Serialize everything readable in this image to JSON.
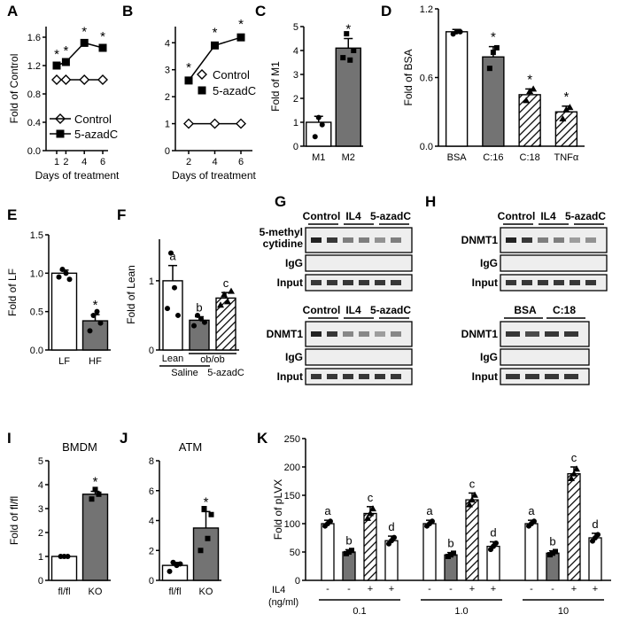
{
  "panel_labels": [
    "A",
    "B",
    "C",
    "D",
    "E",
    "F",
    "G",
    "H",
    "I",
    "J",
    "K"
  ],
  "colors": {
    "gray": "#737373",
    "dark": "#555555",
    "black": "#000000",
    "white": "#ffffff"
  },
  "chart_data": [
    {
      "panel": "A",
      "type": "line",
      "xlabel": "Days of treatment",
      "ylabel": "Fold of Control",
      "xticks": [
        "1",
        "2",
        "4",
        "6"
      ],
      "yticks": [
        "0.0",
        "0.4",
        "0.8",
        "1.2",
        "1.6"
      ],
      "ylim": [
        0,
        1.75
      ],
      "series": [
        {
          "name": "Control",
          "marker": "open-diamond",
          "x": [
            1,
            2,
            4,
            6
          ],
          "y": [
            1.0,
            1.0,
            1.0,
            1.0
          ]
        },
        {
          "name": "5-azadC",
          "marker": "filled-square",
          "x": [
            1,
            2,
            4,
            6
          ],
          "y": [
            1.2,
            1.25,
            1.52,
            1.45
          ]
        }
      ],
      "annotations": [
        "*",
        "*",
        "*",
        "*"
      ]
    },
    {
      "panel": "B",
      "type": "line",
      "xlabel": "Days of treatment",
      "ylabel": "",
      "xticks": [
        "2",
        "4",
        "6"
      ],
      "yticks": [
        "0",
        "1",
        "2",
        "3",
        "4"
      ],
      "ylim": [
        0,
        4.6
      ],
      "series": [
        {
          "name": "Control",
          "marker": "open-diamond",
          "x": [
            2,
            4,
            6
          ],
          "y": [
            1.0,
            1.0,
            1.0
          ]
        },
        {
          "name": "5-azadC",
          "marker": "filled-square",
          "x": [
            2,
            4,
            6
          ],
          "y": [
            2.6,
            3.9,
            4.2
          ]
        }
      ],
      "annotations": [
        "*",
        "*",
        "*"
      ]
    },
    {
      "panel": "C",
      "type": "bar",
      "ylabel": "Fold of M1",
      "categories": [
        "M1",
        "M2"
      ],
      "values": [
        1.0,
        4.1
      ],
      "yticks": [
        "0",
        "1",
        "2",
        "3",
        "4",
        "5"
      ],
      "ylim": [
        0,
        5
      ],
      "annotations": [
        "",
        "*"
      ]
    },
    {
      "panel": "D",
      "type": "bar",
      "ylabel": "Fold of BSA",
      "categories": [
        "BSA",
        "C:16",
        "C:18",
        "TNFα"
      ],
      "values": [
        1.0,
        0.78,
        0.45,
        0.3
      ],
      "yticks": [
        "0.0",
        "0.6",
        "1.2"
      ],
      "ylim": [
        0,
        1.2
      ],
      "annotations": [
        "",
        "*",
        "*",
        "*"
      ]
    },
    {
      "panel": "E",
      "type": "bar",
      "ylabel": "Fold of LF",
      "categories": [
        "LF",
        "HF"
      ],
      "values": [
        1.0,
        0.38
      ],
      "yticks": [
        "0.0",
        "0.5",
        "1.0",
        "1.5"
      ],
      "ylim": [
        0,
        1.5
      ],
      "annotations": [
        "",
        "*"
      ]
    },
    {
      "panel": "F",
      "type": "bar",
      "ylabel": "Fold of Lean",
      "categories": [
        "Lean",
        "ob/ob",
        "ob/ob"
      ],
      "values": [
        1.0,
        0.43,
        0.75
      ],
      "yticks": [
        "0",
        "1"
      ],
      "ylim": [
        0,
        1.6
      ],
      "annotations": [
        "a",
        "b",
        "c"
      ],
      "group_labels": [
        "Lean",
        "ob/ob",
        "Saline",
        "5-azadC"
      ]
    },
    {
      "panel": "I",
      "type": "bar",
      "title": "BMDM",
      "ylabel": "Fold of fl/fl",
      "categories": [
        "fl/fl",
        "KO"
      ],
      "values": [
        1.0,
        3.6
      ],
      "yticks": [
        "0",
        "1",
        "2",
        "3",
        "4",
        "5"
      ],
      "ylim": [
        0,
        5
      ],
      "annotations": [
        "",
        "*"
      ]
    },
    {
      "panel": "J",
      "type": "bar",
      "title": "ATM",
      "ylabel": "",
      "categories": [
        "fl/fl",
        "KO"
      ],
      "values": [
        1.0,
        3.5
      ],
      "yticks": [
        "0",
        "2",
        "4",
        "6",
        "8"
      ],
      "ylim": [
        0,
        8
      ],
      "annotations": [
        "",
        "*"
      ]
    },
    {
      "panel": "K",
      "type": "bar",
      "ylabel": "Fold of pLVX",
      "groups": [
        "0.1",
        "1.0",
        "10"
      ],
      "il4_signs": [
        "-",
        "-",
        "+",
        "+"
      ],
      "values": [
        [
          100,
          50,
          118,
          70
        ],
        [
          100,
          45,
          142,
          60
        ],
        [
          100,
          48,
          188,
          75
        ]
      ],
      "letters": [
        "a",
        "b",
        "c",
        "d"
      ],
      "yticks": [
        "0",
        "50",
        "100",
        "150",
        "200",
        "250"
      ],
      "ylim": [
        0,
        250
      ],
      "row_labels": [
        "IL4",
        "(ng/ml)"
      ]
    }
  ],
  "gels": {
    "G_top": {
      "headers": [
        "Control",
        "IL4",
        "5-azadC"
      ],
      "rows": [
        "5-methyl",
        "cytidine",
        "IgG",
        "Input"
      ]
    },
    "G_bot": {
      "headers": [
        "Control",
        "IL4",
        "5-azadC"
      ],
      "rows": [
        "DNMT1",
        "IgG",
        "Input"
      ]
    },
    "H_top": {
      "headers": [
        "Control",
        "IL4",
        "5-azadC"
      ],
      "rows": [
        "DNMT1",
        "IgG",
        "Input"
      ]
    },
    "H_bot": {
      "headers": [
        "BSA",
        "C:18"
      ],
      "rows": [
        "DNMT1",
        "IgG",
        "Input"
      ]
    }
  }
}
